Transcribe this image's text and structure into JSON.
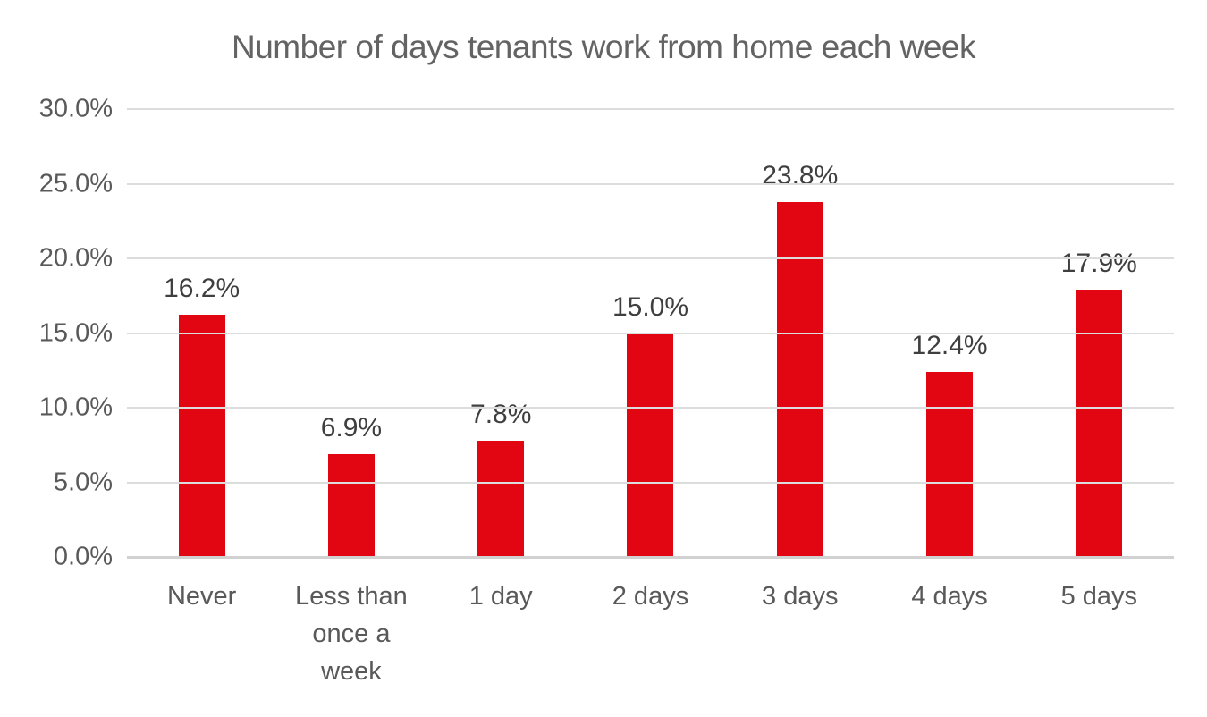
{
  "chart_data": {
    "type": "bar",
    "title": "Number of days tenants work from home each week",
    "categories": [
      "Never",
      "Less than once a week",
      "1 day",
      "2 days",
      "3 days",
      "4 days",
      "5 days"
    ],
    "values": [
      16.2,
      6.9,
      7.8,
      15.0,
      23.8,
      12.4,
      17.9
    ],
    "value_labels": [
      "16.2%",
      "6.9%",
      "7.8%",
      "15.0%",
      "23.8%",
      "12.4%",
      "17.9%"
    ],
    "xlabel": "",
    "ylabel": "",
    "ylim": [
      0,
      30
    ],
    "y_ticks": [
      0,
      5,
      10,
      15,
      20,
      25,
      30
    ],
    "y_tick_labels": [
      "0.0%",
      "5.0%",
      "10.0%",
      "15.0%",
      "20.0%",
      "25.0%",
      "30.0%"
    ],
    "grid": "horizontal",
    "legend": "none",
    "colors": {
      "bar": "#e20613",
      "gridline": "#dcdcdc",
      "axis_line": "#d1d1d1",
      "title_text": "#636363",
      "tick_text": "#595959",
      "value_label_text": "#3f3f3f",
      "background": "#ffffff"
    }
  }
}
